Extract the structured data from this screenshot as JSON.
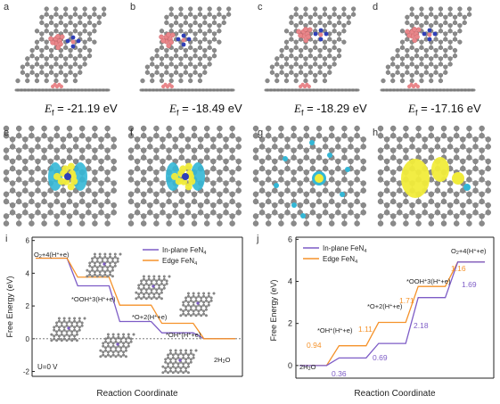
{
  "panel_labels": [
    "a",
    "b",
    "c",
    "d",
    "e",
    "f",
    "g",
    "h",
    "i",
    "j"
  ],
  "formation": {
    "symbol_main": "E",
    "symbol_sub": "f",
    "values": [
      "= -21.19 eV",
      "= -18.49 eV",
      "= -18.29  eV",
      "= -17.16 eV"
    ]
  },
  "chart_i": {
    "ylabel": "Free Energy (eV)",
    "xlabel": "Reaction Coordinate",
    "yticks": [
      "-2",
      "0",
      "2",
      "4",
      "6"
    ],
    "legend": [
      {
        "label": "In-plane FeN4",
        "color": "#7d5cc6"
      },
      {
        "label": "Edge FeN4",
        "color": "#f5922a"
      }
    ],
    "bias_label": "U=0 V",
    "species": [
      {
        "text": "O2+4(H++e)"
      },
      {
        "text": "*OOH+3(H++e)"
      },
      {
        "text": "*O+2(H++e)"
      },
      {
        "text": "*OH+(H++e)"
      },
      {
        "text": "2H2O"
      }
    ]
  },
  "chart_j": {
    "ylabel": "Free Energy (eV)",
    "xlabel": "Reaction Coordinate",
    "yticks": [
      "0",
      "2",
      "4",
      "6"
    ],
    "legend": [
      {
        "label": "In-plane FeN4",
        "color": "#7d5cc6"
      },
      {
        "label": "Edge FeN4",
        "color": "#f5922a"
      }
    ],
    "species": [
      {
        "text": "2H2O"
      },
      {
        "text": "*OH+(H++e)"
      },
      {
        "text": "*O+2(H++e)"
      },
      {
        "text": "*OOH+3(H++e)"
      },
      {
        "text": "O2+4(H++e)"
      }
    ],
    "step_labels_edge": [
      "0.94",
      "1.11",
      "1.71",
      "1.16"
    ],
    "step_labels_inplane": [
      "0.36",
      "0.69",
      "2.18",
      "1.69"
    ]
  },
  "chart_data": [
    {
      "type": "line",
      "title": "",
      "xlabel": "Reaction Coordinate",
      "ylabel": "Free Energy (eV)",
      "ylim": [
        -2.3,
        6.2
      ],
      "categories": [
        "O2+4(H++e)",
        "*OOH+3(H++e)",
        "*O+2(H++e)",
        "*OH+(H++e)",
        "2H2O"
      ],
      "series": [
        {
          "name": "In-plane FeN4",
          "values": [
            4.92,
            3.23,
            1.05,
            0.36,
            0
          ]
        },
        {
          "name": "Edge FeN4",
          "values": [
            4.92,
            3.76,
            2.05,
            0.94,
            0
          ]
        }
      ]
    },
    {
      "type": "line",
      "title": "",
      "xlabel": "Reaction Coordinate",
      "ylabel": "Free Energy (eV)",
      "ylim": [
        -0.6,
        6.1
      ],
      "categories": [
        "2H2O",
        "*OH+(H++e)",
        "*O+2(H++e)",
        "*OOH+3(H++e)",
        "O2+4(H++e)"
      ],
      "series": [
        {
          "name": "Edge FeN4",
          "values": [
            0,
            0.94,
            2.05,
            3.76,
            4.92
          ]
        },
        {
          "name": "In-plane FeN4",
          "values": [
            0,
            0.36,
            1.05,
            3.23,
            4.92
          ]
        }
      ]
    }
  ]
}
